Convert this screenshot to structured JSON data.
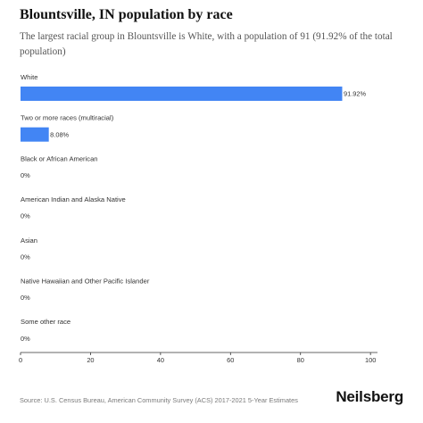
{
  "header": {
    "title": "Blountsville, IN population by race",
    "subtitle": "The largest racial group in Blountsville is White, with a population of 91 (91.92% of the total population)"
  },
  "footer": {
    "source": "Source: U.S. Census Bureau, American Community Survey (ACS) 2017-2021 5-Year Estimates",
    "brand": "Neilsberg"
  },
  "chart_data": {
    "type": "bar",
    "orientation": "horizontal",
    "categories": [
      "White",
      "Two or more races (multiracial)",
      "Black or African American",
      "American Indian and Alaska Native",
      "Asian",
      "Native Hawaiian and Other Pacific Islander",
      "Some other race"
    ],
    "values": [
      91.92,
      8.08,
      0,
      0,
      0,
      0,
      0
    ],
    "value_labels": [
      "91.92%",
      "8.08%",
      "0%",
      "0%",
      "0%",
      "0%",
      "0%"
    ],
    "xlim": [
      0,
      102
    ],
    "xticks": [
      0,
      20,
      40,
      60,
      80,
      100
    ],
    "bar_color": "#4285f4",
    "grid": false,
    "legend": "none"
  }
}
